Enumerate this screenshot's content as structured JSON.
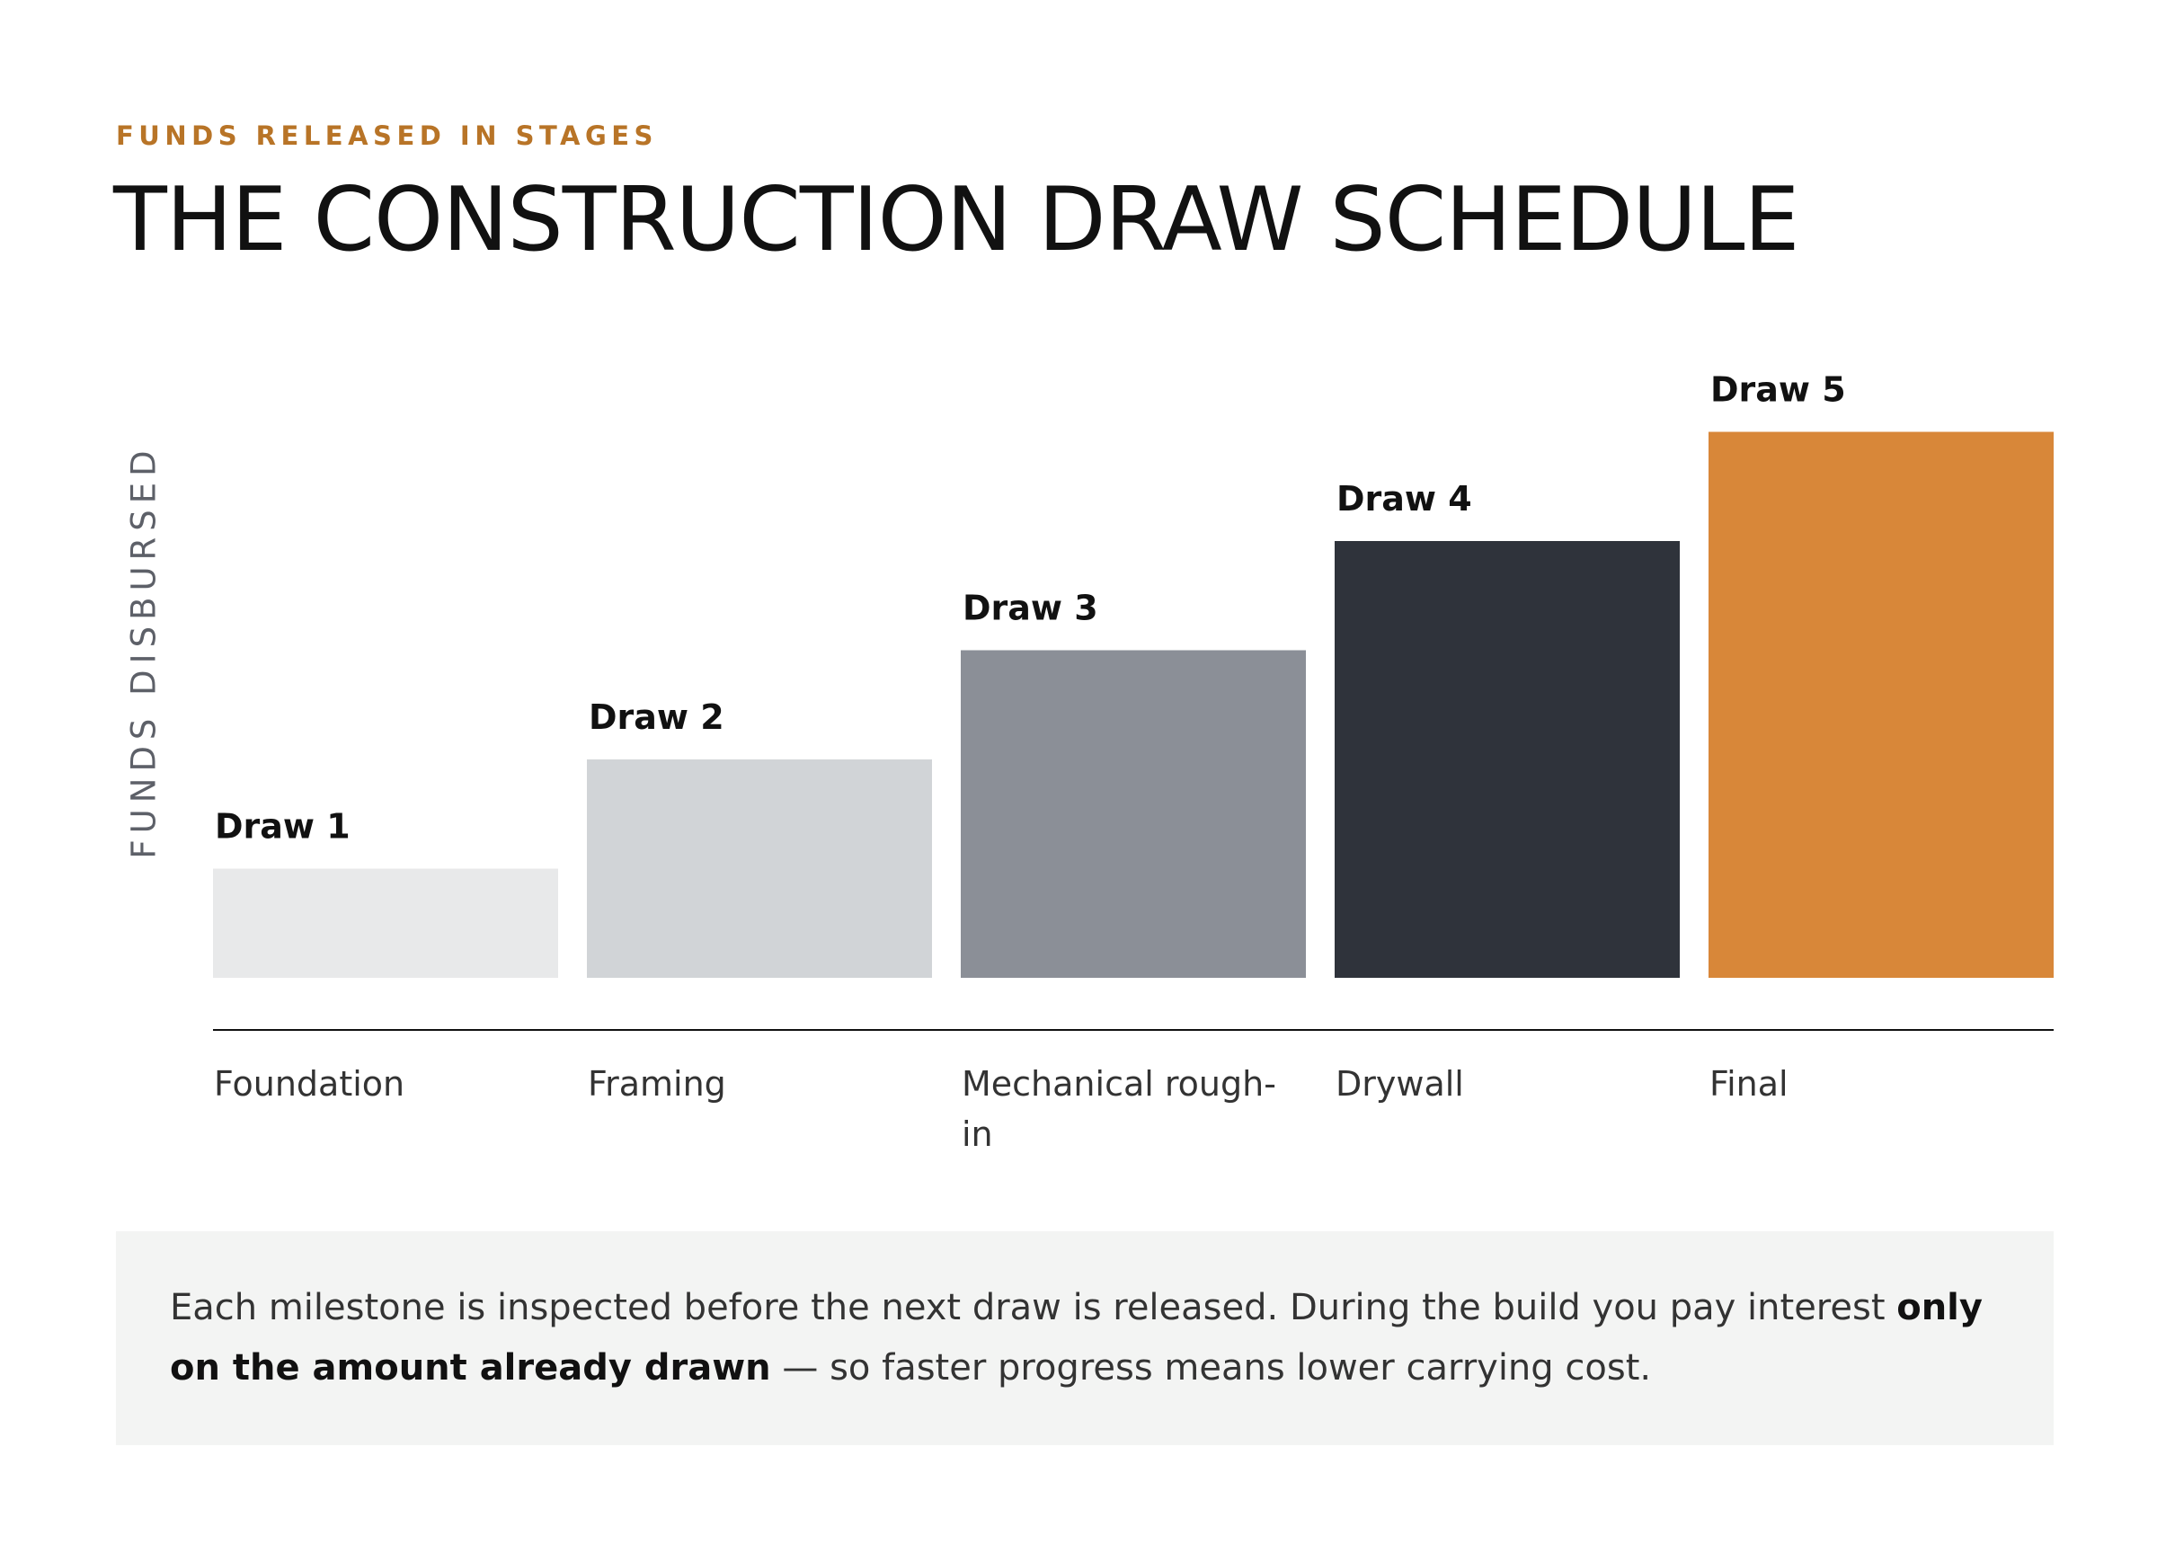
{
  "eyebrow": "FUNDS RELEASED IN STAGES",
  "title": "THE CONSTRUCTION DRAW SCHEDULE",
  "chart_data": {
    "type": "bar",
    "ylabel": "FUNDS DISBURSED",
    "xlabel": "",
    "categories": [
      "Foundation",
      "Framing",
      "Mechanical rough-in",
      "Drywall",
      "Final"
    ],
    "values": [
      1,
      2,
      3,
      4,
      5
    ],
    "bar_labels": [
      "Draw 1",
      "Draw 2",
      "Draw 3",
      "Draw 4",
      "Draw 5"
    ],
    "colors": [
      "#e8e9ea",
      "#d1d4d7",
      "#8b8f97",
      "#2f333b",
      "#d88739"
    ],
    "ylim": [
      0,
      5
    ],
    "grid": false,
    "legend": "none"
  },
  "note": {
    "text_before": "Each milestone is inspected before the next draw is released. During the build you pay interest ",
    "text_bold": "only on the amount already drawn",
    "text_after": " — so faster progress means lower carrying cost."
  }
}
